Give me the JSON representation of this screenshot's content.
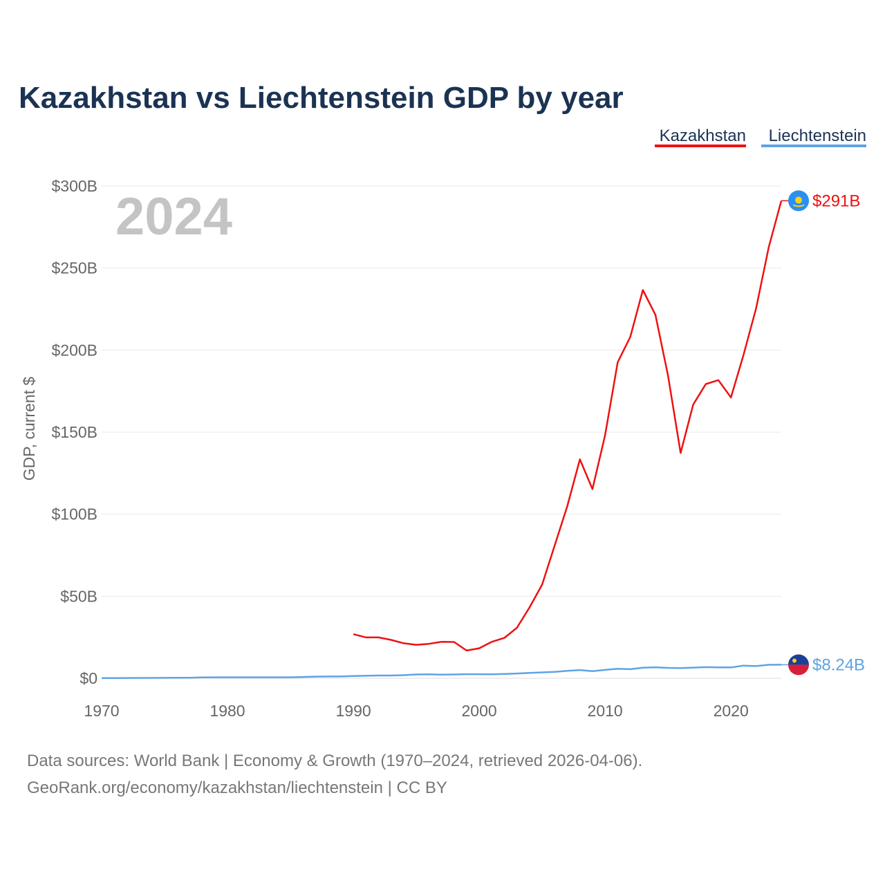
{
  "chart_data": {
    "type": "line",
    "title": "Kazakhstan vs Liechtenstein GDP by year",
    "year_label": "2024",
    "xlabel": "",
    "ylabel": "GDP, current $",
    "xlim": [
      1970,
      2024
    ],
    "ylim": [
      0,
      300
    ],
    "x_ticks": [
      1970,
      1980,
      1990,
      2000,
      2010,
      2020
    ],
    "x_tick_labels": [
      "1970",
      "1980",
      "1990",
      "2000",
      "2010",
      "2020"
    ],
    "y_ticks": [
      0,
      50,
      100,
      150,
      200,
      250,
      300
    ],
    "y_tick_labels": [
      "$0",
      "$50B",
      "$100B",
      "$150B",
      "$200B",
      "$250B",
      "$300B"
    ],
    "grid": true,
    "legend_position": "top-right",
    "series": [
      {
        "name": "Kazakhstan",
        "color": "#ee1111",
        "end_label": "$291B",
        "flag": "kazakhstan-flag",
        "x": [
          1990,
          1991,
          1992,
          1993,
          1994,
          1995,
          1996,
          1997,
          1998,
          1999,
          2000,
          2001,
          2002,
          2003,
          2004,
          2005,
          2006,
          2007,
          2008,
          2009,
          2010,
          2011,
          2012,
          2013,
          2014,
          2015,
          2016,
          2017,
          2018,
          2019,
          2020,
          2021,
          2022,
          2023,
          2024
        ],
        "values": [
          26.9,
          24.9,
          24.9,
          23.4,
          21.3,
          20.4,
          21.0,
          22.2,
          22.1,
          16.9,
          18.3,
          22.2,
          24.6,
          30.8,
          43.2,
          57.1,
          81.0,
          104.9,
          133.4,
          115.3,
          148.0,
          192.6,
          208.0,
          236.6,
          221.4,
          184.4,
          137.3,
          166.8,
          179.3,
          181.7,
          171.1,
          197.1,
          225.5,
          262.6,
          291.0
        ]
      },
      {
        "name": "Liechtenstein",
        "color": "#5fa3e4",
        "end_label": "$8.24B",
        "flag": "liechtenstein-flag",
        "x": [
          1970,
          1971,
          1972,
          1973,
          1974,
          1975,
          1976,
          1977,
          1978,
          1979,
          1980,
          1981,
          1982,
          1983,
          1984,
          1985,
          1986,
          1987,
          1988,
          1989,
          1990,
          1991,
          1992,
          1993,
          1994,
          1995,
          1996,
          1997,
          1998,
          1999,
          2000,
          2001,
          2002,
          2003,
          2004,
          2005,
          2006,
          2007,
          2008,
          2009,
          2010,
          2011,
          2012,
          2013,
          2014,
          2015,
          2016,
          2017,
          2018,
          2019,
          2020,
          2021,
          2022,
          2023,
          2024
        ],
        "values": [
          0.1,
          0.1,
          0.15,
          0.2,
          0.2,
          0.25,
          0.3,
          0.35,
          0.5,
          0.6,
          0.6,
          0.6,
          0.6,
          0.6,
          0.6,
          0.6,
          0.8,
          1.0,
          1.1,
          1.1,
          1.4,
          1.5,
          1.7,
          1.7,
          1.9,
          2.3,
          2.4,
          2.2,
          2.3,
          2.5,
          2.5,
          2.4,
          2.6,
          2.9,
          3.3,
          3.6,
          3.9,
          4.5,
          5.0,
          4.3,
          5.1,
          5.8,
          5.5,
          6.4,
          6.7,
          6.3,
          6.2,
          6.5,
          6.8,
          6.6,
          6.6,
          7.7,
          7.4,
          8.2,
          8.24
        ]
      }
    ]
  },
  "footer": {
    "source_line": "Data sources: World Bank | Economy & Growth (1970–2024, retrieved 2026-04-06).",
    "url_line": "GeoRank.org/economy/kazakhstan/liechtenstein | CC BY"
  },
  "colors": {
    "title": "#1b3353",
    "grid": "#e8e8e8",
    "axis": "#dddddd",
    "tick": "#666666"
  }
}
